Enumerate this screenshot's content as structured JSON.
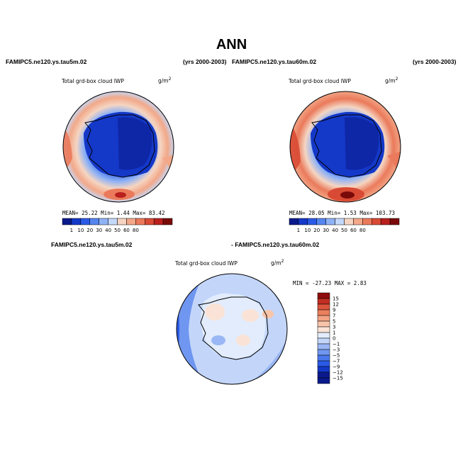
{
  "page": {
    "title": "ANN",
    "top_left_case": "FAMIPC5.ne120.ys.tau5m.02",
    "top_left_years": "(yrs 2000-2003)",
    "top_right_case": "FAMIPC5.ne120.ys.tau60m.02",
    "top_right_years": "(yrs 2000-2003)",
    "diff_case_a": "FAMIPC5.ne120.ys.tau5m.02",
    "diff_case_b": "- FAMIPC5.ne120.ys.tau60m.02"
  },
  "panels": {
    "left": {
      "variable": "Total grd-box cloud IWP",
      "units": "g/m",
      "units_exp": "2",
      "stats": "MEAN=   25.22  Min=    1.44  Max=   83.42",
      "colorbar_labels": [
        "1",
        "10",
        "20",
        "30",
        "40",
        "50",
        "60",
        "80"
      ]
    },
    "right": {
      "variable": "Total grd-box cloud IWP",
      "units": "g/m",
      "units_exp": "2",
      "stats": "MEAN=   28.05  Min=    1.53  Max=  103.73",
      "colorbar_labels": [
        "1",
        "10",
        "20",
        "30",
        "40",
        "50",
        "60",
        "80"
      ]
    },
    "diff": {
      "variable": "Total grd-box cloud IWP",
      "units": "g/m",
      "units_exp": "2",
      "stats": "MIN = -27.23  MAX =    2.83",
      "colorbar_labels": [
        "15",
        "12",
        "9",
        "7",
        "5",
        "3",
        "1",
        "0",
        "−1",
        "−3",
        "−5",
        "−7",
        "−9",
        "−12",
        "−15"
      ]
    }
  },
  "colors": {
    "abs_scale": [
      "#0a1a8c",
      "#1438c8",
      "#2a5ae6",
      "#5585ef",
      "#8fb2f5",
      "#c4d9fa",
      "#f5d5c2",
      "#f2a889",
      "#ea7a5b",
      "#d94a34",
      "#b81f1d",
      "#7a0a0a"
    ],
    "diff_scale": [
      "#0a1a8c",
      "#1438c8",
      "#2a5ae6",
      "#4a78ec",
      "#6f96f0",
      "#9ab7f5",
      "#c3d6fa",
      "#e2ecfc",
      "#fae3d6",
      "#f8c5ab",
      "#f2a383",
      "#eb7f5e",
      "#db543c",
      "#c12e22",
      "#8f0d0d"
    ]
  }
}
